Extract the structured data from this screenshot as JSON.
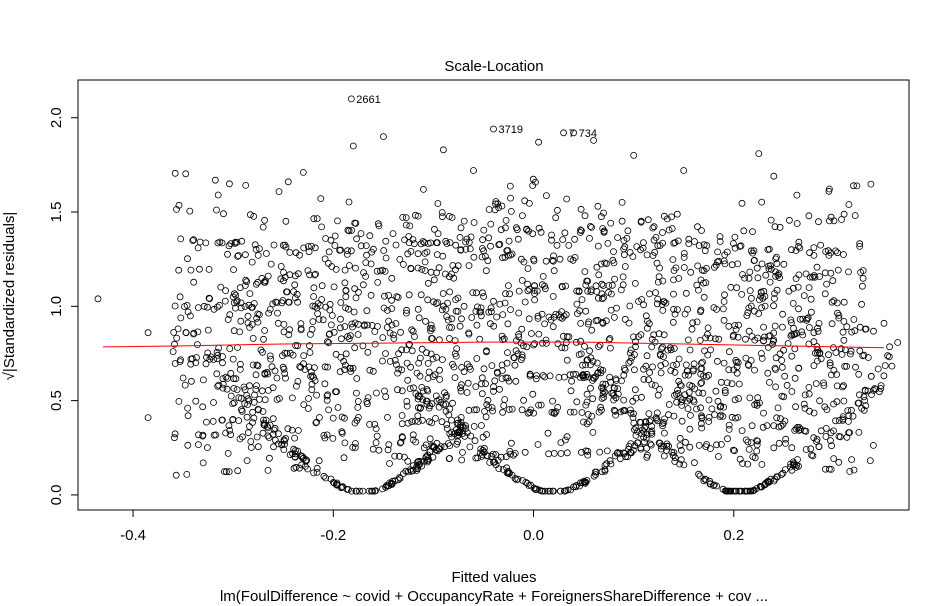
{
  "chart_data": {
    "type": "scatter",
    "title": "Scale-Location",
    "xlabel": "Fitted values",
    "ylabel": "√|Standardized residuals|",
    "subtitle": "lm(FoulDifference ~ covid + OccupancyRate + ForeignersShareDifference + cov ...",
    "xlim": [
      -0.455,
      0.375
    ],
    "ylim": [
      -0.08,
      2.2
    ],
    "x_ticks": [
      -0.4,
      -0.2,
      0.0,
      0.2
    ],
    "x_tick_labels": [
      "-0.4",
      "-0.2",
      "0.0",
      "0.2"
    ],
    "y_ticks": [
      0.0,
      0.5,
      1.0,
      1.5,
      2.0
    ],
    "y_tick_labels": [
      "0.0",
      "0.5",
      "1.0",
      "1.5",
      "2.0"
    ],
    "grid": false,
    "point_color": "#000000",
    "smooth_color": "#ff0000",
    "structure": {
      "v_centers": [
        -0.17,
        0.02,
        0.205
      ],
      "v_slope": 4.6,
      "band_levels": [
        0.22,
        0.44,
        0.63,
        0.8,
        0.95,
        1.1,
        1.24,
        1.38
      ],
      "band_slope": 2.0,
      "band_x_range": [
        -0.36,
        0.34
      ],
      "point_count": 2600
    },
    "outliers": [
      {
        "label": "2661",
        "x": -0.182,
        "y": 2.1
      },
      {
        "label": "3719",
        "x": -0.04,
        "y": 1.94
      },
      {
        "label": "734",
        "x": 0.04,
        "y": 1.92
      },
      {
        "label": "7",
        "x": 0.03,
        "y": 1.92
      }
    ],
    "extra_points": [
      {
        "x": -0.435,
        "y": 1.04
      },
      {
        "x": -0.385,
        "y": 0.86
      },
      {
        "x": -0.385,
        "y": 0.41
      },
      {
        "x": -0.36,
        "y": 0.76
      },
      {
        "x": -0.355,
        "y": 0.88
      },
      {
        "x": -0.35,
        "y": 0.62
      },
      {
        "x": -0.345,
        "y": 0.97
      },
      {
        "x": -0.345,
        "y": 0.42
      },
      {
        "x": -0.33,
        "y": 0.17
      },
      {
        "x": -0.335,
        "y": 1.31
      },
      {
        "x": -0.315,
        "y": 1.59
      },
      {
        "x": -0.32,
        "y": 0.39
      },
      {
        "x": -0.305,
        "y": 0.22
      },
      {
        "x": -0.305,
        "y": 0.93
      },
      {
        "x": -0.3,
        "y": 0.72
      },
      {
        "x": -0.285,
        "y": 0.51
      },
      {
        "x": -0.275,
        "y": 1.27
      },
      {
        "x": -0.27,
        "y": 1.42
      },
      {
        "x": -0.265,
        "y": 1.16
      },
      {
        "x": -0.245,
        "y": 1.66
      },
      {
        "x": -0.23,
        "y": 1.71
      },
      {
        "x": -0.18,
        "y": 1.85
      },
      {
        "x": -0.15,
        "y": 1.9
      },
      {
        "x": -0.11,
        "y": 1.62
      },
      {
        "x": -0.09,
        "y": 1.83
      },
      {
        "x": -0.06,
        "y": 1.72
      },
      {
        "x": 0.005,
        "y": 1.87
      },
      {
        "x": 0.06,
        "y": 1.88
      },
      {
        "x": 0.1,
        "y": 1.8
      },
      {
        "x": 0.15,
        "y": 1.72
      },
      {
        "x": 0.225,
        "y": 1.81
      },
      {
        "x": 0.24,
        "y": 1.69
      },
      {
        "x": 0.265,
        "y": 1.34
      },
      {
        "x": 0.275,
        "y": 1.48
      },
      {
        "x": 0.28,
        "y": 1.27
      },
      {
        "x": 0.295,
        "y": 1.27
      },
      {
        "x": 0.295,
        "y": 1.61
      },
      {
        "x": 0.315,
        "y": 1.54
      },
      {
        "x": 0.3,
        "y": 1.03
      },
      {
        "x": 0.275,
        "y": 0.8
      },
      {
        "x": 0.275,
        "y": 0.57
      },
      {
        "x": 0.29,
        "y": 0.58
      },
      {
        "x": 0.31,
        "y": 0.92
      },
      {
        "x": 0.32,
        "y": 0.93
      },
      {
        "x": 0.33,
        "y": 0.52
      },
      {
        "x": 0.35,
        "y": 0.91
      },
      {
        "x": 0.305,
        "y": 0.31
      },
      {
        "x": 0.3,
        "y": 0.66
      },
      {
        "x": 0.25,
        "y": 0.52
      },
      {
        "x": 0.245,
        "y": 0.36
      },
      {
        "x": 0.24,
        "y": 0.25
      },
      {
        "x": 0.26,
        "y": 0.85
      },
      {
        "x": 0.255,
        "y": 1.08
      },
      {
        "x": 0.28,
        "y": 0.86
      },
      {
        "x": 0.31,
        "y": 0.82
      },
      {
        "x": -0.3,
        "y": 1.05
      },
      {
        "x": -0.28,
        "y": 0.83
      }
    ],
    "smooth": {
      "x": [
        -0.43,
        -0.35,
        -0.25,
        -0.15,
        -0.05,
        0.05,
        0.15,
        0.25,
        0.35
      ],
      "y": [
        0.785,
        0.79,
        0.8,
        0.805,
        0.81,
        0.81,
        0.8,
        0.79,
        0.78
      ]
    }
  }
}
